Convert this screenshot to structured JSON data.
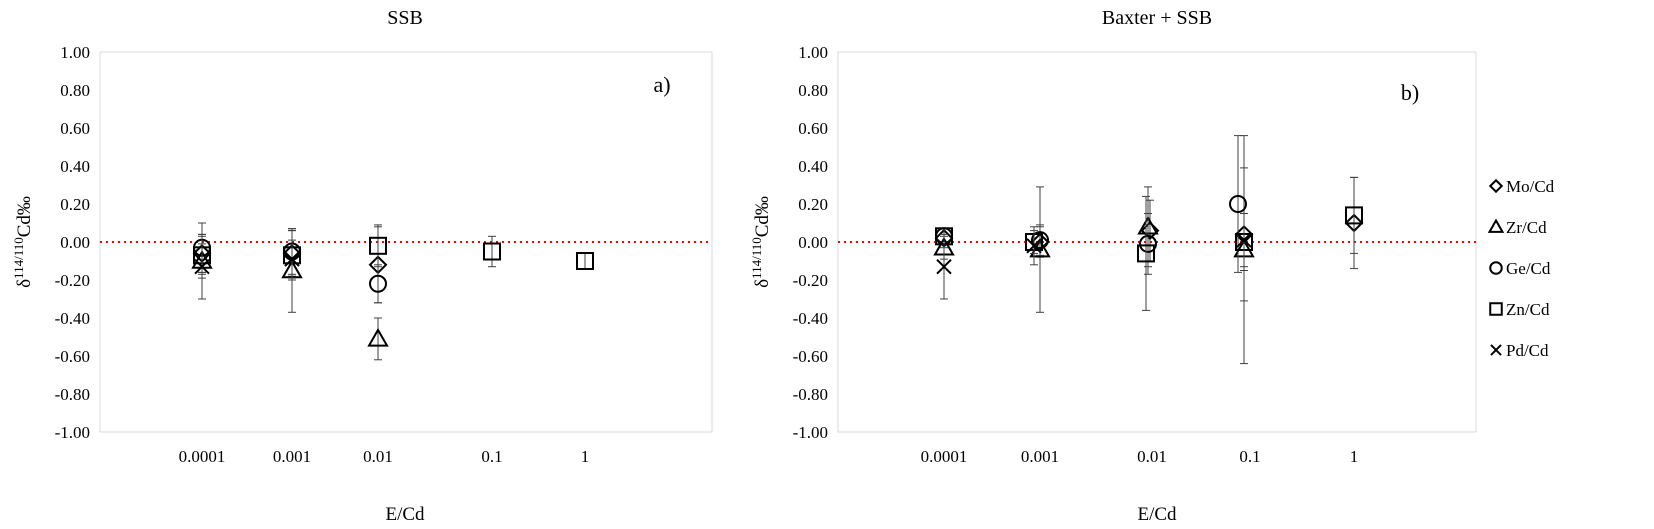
{
  "chart_data": [
    {
      "type": "scatter",
      "title": "SSB",
      "panel_label": "a)",
      "xlabel": "E/Cd",
      "ylabel_base": "δ",
      "ylabel_sup": "114/110",
      "ylabel_rest": "Cd‰",
      "x_scale": "log",
      "x_ticks": [
        "0.0001",
        "0.001",
        "0.01",
        "0.1",
        "1"
      ],
      "ylim": [
        -1.0,
        1.0
      ],
      "y_ticks": [
        "1.00",
        "0.80",
        "0.60",
        "0.40",
        "0.20",
        "0.00",
        "-0.20",
        "-0.40",
        "-0.60",
        "-0.80",
        "-1.00"
      ],
      "reference_line": {
        "y": 0.0,
        "color": "#ff0000",
        "style": "dotted"
      },
      "series": [
        {
          "name": "Mo/Cd",
          "marker": "diamond",
          "points": [
            {
              "x": 0.0001,
              "y": -0.06,
              "err": 0.1
            },
            {
              "x": 0.001,
              "y": -0.06,
              "err": 0.12
            },
            {
              "x": 0.01,
              "y": -0.12,
              "err": 0.2
            }
          ]
        },
        {
          "name": "Zr/Cd",
          "marker": "triangle",
          "points": [
            {
              "x": 0.0001,
              "y": -0.1,
              "err": 0.09
            },
            {
              "x": 0.001,
              "y": -0.15,
              "err": 0.22
            },
            {
              "x": 0.01,
              "y": -0.51,
              "err": 0.11
            }
          ]
        },
        {
          "name": "Ge/Cd",
          "marker": "circle",
          "points": [
            {
              "x": 0.0001,
              "y": -0.03,
              "err": 0.13
            },
            {
              "x": 0.001,
              "y": -0.05,
              "err": 0.12
            },
            {
              "x": 0.01,
              "y": -0.22,
              "err": 0.1
            }
          ]
        },
        {
          "name": "Zn/Cd",
          "marker": "square",
          "points": [
            {
              "x": 0.0001,
              "y": -0.07,
              "err": 0.1
            },
            {
              "x": 0.001,
              "y": -0.07,
              "err": 0.13
            },
            {
              "x": 0.01,
              "y": -0.02,
              "err": 0.11
            },
            {
              "x": 0.1,
              "y": -0.05,
              "err": 0.08
            },
            {
              "x": 1,
              "y": -0.1,
              "err": 0.04
            }
          ]
        },
        {
          "name": "Pd/Cd",
          "marker": "cross",
          "points": [
            {
              "x": 0.0001,
              "y": -0.13,
              "err": 0.17
            },
            {
              "x": 0.001,
              "y": -0.09,
              "err": 0.1
            }
          ]
        }
      ]
    },
    {
      "type": "scatter",
      "title": "Baxter + SSB",
      "panel_label": "b)",
      "xlabel": "E/Cd",
      "ylabel_base": "δ",
      "ylabel_sup": "114/110",
      "ylabel_rest": "Cd‰",
      "x_scale": "log",
      "x_ticks": [
        "0.0001",
        "0.001",
        "0.01",
        "0.1",
        "1"
      ],
      "ylim": [
        -1.0,
        1.0
      ],
      "y_ticks": [
        "1.00",
        "0.80",
        "0.60",
        "0.40",
        "0.20",
        "0.00",
        "-0.20",
        "-0.40",
        "-0.60",
        "-0.80",
        "-1.00"
      ],
      "reference_line": {
        "y": 0.0,
        "color": "#ff0000",
        "style": "dotted"
      },
      "legend_position": "right",
      "series": [
        {
          "name": "Mo/Cd",
          "marker": "diamond",
          "points": [
            {
              "x": 0.0001,
              "y": 0.02,
              "err": 0.05
            },
            {
              "x": 0.001,
              "y": 0.0,
              "err": 0.08
            },
            {
              "x": 0.01,
              "y": 0.06,
              "err": 0.16
            },
            {
              "x": 0.1,
              "y": 0.04,
              "err": 0.35
            },
            {
              "x": 1,
              "y": 0.1,
              "err": 0.24
            }
          ]
        },
        {
          "name": "Zr/Cd",
          "marker": "triangle",
          "points": [
            {
              "x": 0.0001,
              "y": -0.03,
              "err": 0.06
            },
            {
              "x": 0.001,
              "y": -0.04,
              "err": 0.33
            },
            {
              "x": 0.01,
              "y": 0.08,
              "err": 0.21
            },
            {
              "x": 0.1,
              "y": -0.04,
              "err": 0.6
            }
          ]
        },
        {
          "name": "Ge/Cd",
          "marker": "circle",
          "points": [
            {
              "x": 0.0001,
              "y": 0.03,
              "err": 0.04
            },
            {
              "x": 0.001,
              "y": 0.01,
              "err": 0.08
            },
            {
              "x": 0.01,
              "y": -0.01,
              "err": 0.16
            },
            {
              "x": 0.1,
              "y": 0.2,
              "err": 0.36
            }
          ]
        },
        {
          "name": "Zn/Cd",
          "marker": "square",
          "points": [
            {
              "x": 0.0001,
              "y": 0.03,
              "err": 0.04
            },
            {
              "x": 0.001,
              "y": 0.0,
              "err": 0.06
            },
            {
              "x": 0.01,
              "y": -0.06,
              "err": 0.3
            },
            {
              "x": 0.1,
              "y": 0.0,
              "err": 0.15
            },
            {
              "x": 1,
              "y": 0.14,
              "err": 0.2
            }
          ]
        },
        {
          "name": "Pd/Cd",
          "marker": "cross",
          "points": [
            {
              "x": 0.0001,
              "y": -0.13,
              "err": 0.17
            },
            {
              "x": 0.001,
              "y": -0.02,
              "err": 0.1
            },
            {
              "x": 0.1,
              "y": 0.01,
              "err": 0.14
            }
          ]
        }
      ]
    }
  ]
}
